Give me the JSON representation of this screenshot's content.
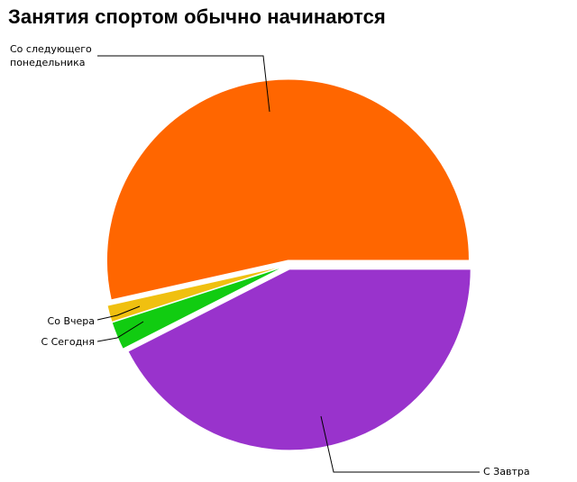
{
  "chart_data": {
    "type": "pie",
    "title": "Занятия спортом обычно начинаются",
    "slices": [
      {
        "label": "Со следующего понедельника",
        "label_lines": [
          "Со следующего",
          "понедельника"
        ],
        "value": 53.5,
        "color": "#ff6600"
      },
      {
        "label": "Со Вчера",
        "label_lines": [
          "Со Вчера"
        ],
        "value": 1.5,
        "color": "#f0c010"
      },
      {
        "label": "С Сегодня",
        "label_lines": [
          "С Сегодня"
        ],
        "value": 2.5,
        "color": "#11cc11"
      },
      {
        "label": "С Завтра",
        "label_lines": [
          "С Завтра"
        ],
        "value": 42.5,
        "color": "#9933cc"
      }
    ]
  }
}
